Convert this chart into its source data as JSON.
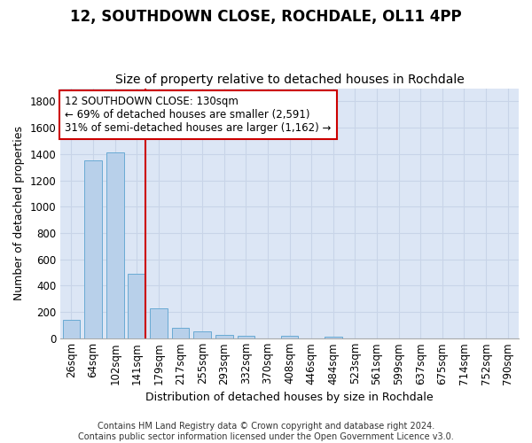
{
  "title": "12, SOUTHDOWN CLOSE, ROCHDALE, OL11 4PP",
  "subtitle": "Size of property relative to detached houses in Rochdale",
  "xlabel": "Distribution of detached houses by size in Rochdale",
  "ylabel": "Number of detached properties",
  "categories": [
    "26sqm",
    "64sqm",
    "102sqm",
    "141sqm",
    "179sqm",
    "217sqm",
    "255sqm",
    "293sqm",
    "332sqm",
    "370sqm",
    "408sqm",
    "446sqm",
    "484sqm",
    "523sqm",
    "561sqm",
    "599sqm",
    "637sqm",
    "675sqm",
    "714sqm",
    "752sqm",
    "790sqm"
  ],
  "values": [
    140,
    1355,
    1410,
    490,
    230,
    82,
    50,
    27,
    20,
    0,
    17,
    0,
    14,
    0,
    0,
    0,
    0,
    0,
    0,
    0,
    0
  ],
  "bar_color": "#b8d0ea",
  "bar_edge_color": "#6aaad4",
  "grid_color": "#c8d4e8",
  "background_color": "#dce6f5",
  "annotation_text": "12 SOUTHDOWN CLOSE: 130sqm\n← 69% of detached houses are smaller (2,591)\n31% of semi-detached houses are larger (1,162) →",
  "annotation_box_color": "#cc0000",
  "red_line_x": 2.5,
  "ylim": [
    0,
    1900
  ],
  "yticks": [
    0,
    200,
    400,
    600,
    800,
    1000,
    1200,
    1400,
    1600,
    1800
  ],
  "footer": "Contains HM Land Registry data © Crown copyright and database right 2024.\nContains public sector information licensed under the Open Government Licence v3.0.",
  "title_fontsize": 12,
  "subtitle_fontsize": 10,
  "axis_label_fontsize": 9,
  "tick_fontsize": 8.5,
  "footer_fontsize": 7
}
